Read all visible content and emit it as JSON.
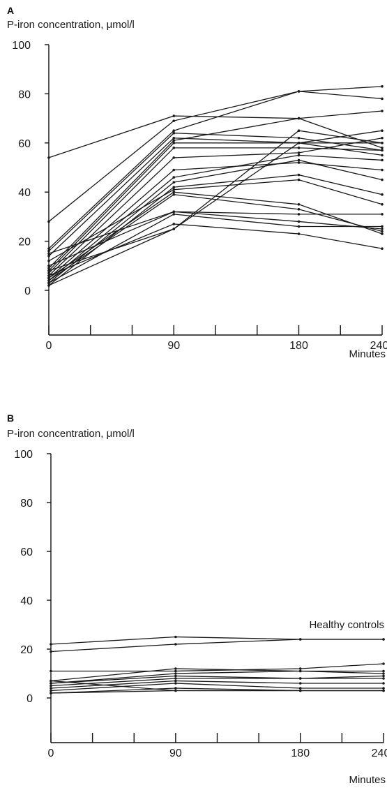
{
  "chart_data": [
    {
      "type": "line",
      "panel": "A",
      "ylabel": "P-iron concentration, μmol/l",
      "xlabel": "Minutes",
      "x": [
        0,
        90,
        180,
        240
      ],
      "xticks": [
        0,
        90,
        180,
        240
      ],
      "yticks": [
        0,
        20,
        40,
        60,
        80,
        100
      ],
      "xlim": [
        0,
        240
      ],
      "ylim": [
        -18,
        100
      ],
      "series": [
        {
          "values": [
            54,
            71,
            70,
            73
          ]
        },
        {
          "values": [
            28,
            69,
            81,
            83
          ]
        },
        {
          "values": [
            17,
            65,
            81,
            78
          ]
        },
        {
          "values": [
            16,
            64,
            62,
            57
          ]
        },
        {
          "values": [
            14,
            62,
            60,
            65
          ]
        },
        {
          "values": [
            9,
            61,
            70,
            58
          ]
        },
        {
          "values": [
            8,
            60,
            60,
            60
          ]
        },
        {
          "values": [
            7,
            58,
            58,
            57
          ]
        },
        {
          "values": [
            6,
            54,
            56,
            62
          ]
        },
        {
          "values": [
            5,
            49,
            52,
            49
          ]
        },
        {
          "values": [
            4,
            46,
            55,
            53
          ]
        },
        {
          "values": [
            3,
            44,
            53,
            45
          ]
        },
        {
          "values": [
            2,
            42,
            47,
            39
          ]
        },
        {
          "values": [
            12,
            41,
            45,
            35
          ]
        },
        {
          "values": [
            5,
            40,
            35,
            23
          ]
        },
        {
          "values": [
            10,
            32,
            31,
            31
          ]
        },
        {
          "values": [
            15,
            32,
            28,
            25
          ]
        },
        {
          "values": [
            3,
            31,
            26,
            26
          ]
        },
        {
          "values": [
            6,
            27,
            23,
            17
          ]
        },
        {
          "values": [
            8,
            25,
            65,
            60
          ]
        },
        {
          "values": [
            4,
            39,
            33,
            24
          ]
        },
        {
          "values": [
            2,
            25,
            60,
            55
          ]
        }
      ]
    },
    {
      "type": "line",
      "panel": "B",
      "ylabel": "P-iron concentration, μmol/l",
      "xlabel": "Minutes",
      "annotation": "Healthy controls",
      "x": [
        0,
        90,
        180,
        240
      ],
      "xticks": [
        0,
        90,
        180,
        240
      ],
      "yticks": [
        0,
        20,
        40,
        60,
        80,
        100
      ],
      "xlim": [
        0,
        240
      ],
      "ylim": [
        -18,
        100
      ],
      "series": [
        {
          "values": [
            22,
            25,
            24,
            24
          ]
        },
        {
          "values": [
            19,
            22,
            24,
            24
          ]
        },
        {
          "values": [
            11,
            11,
            12,
            14
          ]
        },
        {
          "values": [
            7,
            12,
            11,
            11
          ]
        },
        {
          "values": [
            6,
            10,
            11,
            10
          ]
        },
        {
          "values": [
            6,
            9,
            8,
            9
          ]
        },
        {
          "values": [
            5,
            8,
            8,
            8
          ]
        },
        {
          "values": [
            4,
            7,
            6,
            6
          ]
        },
        {
          "values": [
            3,
            6,
            4,
            4
          ]
        },
        {
          "values": [
            2,
            4,
            3,
            3
          ]
        },
        {
          "values": [
            2,
            3,
            3,
            3
          ]
        },
        {
          "values": [
            7,
            3,
            3,
            3
          ]
        }
      ]
    }
  ]
}
